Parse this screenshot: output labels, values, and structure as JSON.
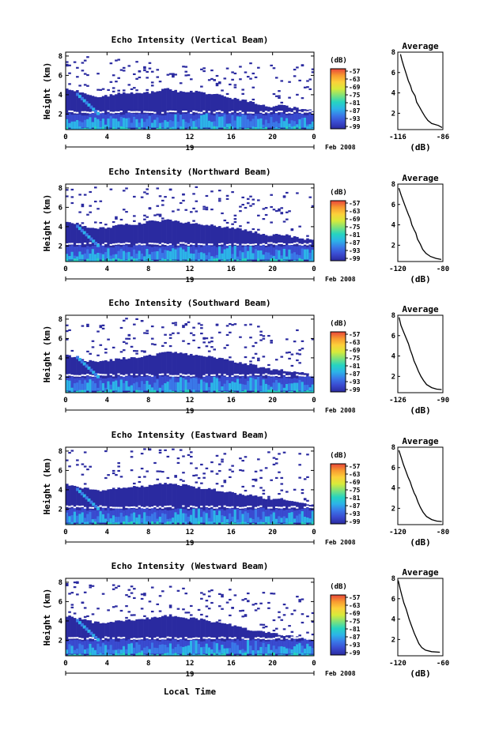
{
  "colors": {
    "colormap": [
      "#2a2aa0",
      "#3a4bd0",
      "#3a78e8",
      "#2cb4e8",
      "#26d4c0",
      "#7ee27a",
      "#d8ea3a",
      "#fcd03a",
      "#f89a30",
      "#e8453a"
    ]
  },
  "footer": {
    "xlabel": "Local Time"
  },
  "chart_data": [
    {
      "type": "heatmap",
      "title": "Echo Intensity (Vertical Beam)",
      "ylabel": "Height (km)",
      "x_ticks": [
        "0",
        "4",
        "8",
        "12",
        "16",
        "20",
        "0"
      ],
      "y_ticks": [
        "2",
        "4",
        "6",
        "8"
      ],
      "date_day": "19",
      "date_label": "Feb 2008",
      "colorbar": {
        "unit": "(dB)",
        "ticks": [
          "-57",
          "-63",
          "-69",
          "-75",
          "-81",
          "-87",
          "-93",
          "-99"
        ]
      },
      "top_clear_km": [
        6.9,
        6.7,
        6.9,
        6.8,
        7.0,
        6.7,
        6.5,
        6.4,
        6.3,
        6.5,
        6.6,
        6.8,
        6.6,
        6.2,
        6.0,
        5.8,
        6.0,
        6.3,
        6.5,
        6.4,
        6.2,
        6.0,
        5.9,
        6.2,
        6.0
      ],
      "layer_top_km": [
        4.6,
        4.4,
        4.0,
        3.8,
        3.9,
        4.1,
        4.2,
        4.1,
        4.2,
        4.5,
        4.6,
        4.3,
        4.4,
        4.3,
        4.1,
        3.9,
        3.6,
        3.5,
        3.3,
        3.0,
        2.8,
        2.9,
        2.7,
        2.5,
        2.4
      ],
      "average_profile": {
        "title": "Average",
        "xlabel": "(dB)",
        "x_ticks": [
          "-116",
          "-86"
        ],
        "xlim": [
          -116,
          -86
        ],
        "y_ticks": [
          "2",
          "4",
          "6",
          "8"
        ],
        "ylim": [
          0.4,
          8
        ],
        "points": [
          [
            -114.2,
            7.8
          ],
          [
            -113.2,
            7.2
          ],
          [
            -112.0,
            6.6
          ],
          [
            -110.5,
            5.9
          ],
          [
            -109.0,
            5.2
          ],
          [
            -107.5,
            4.7
          ],
          [
            -106.5,
            4.2
          ],
          [
            -104.5,
            3.7
          ],
          [
            -103.5,
            3.1
          ],
          [
            -101.5,
            2.6
          ],
          [
            -100.0,
            2.2
          ],
          [
            -98.0,
            1.7
          ],
          [
            -96.0,
            1.3
          ],
          [
            -93.5,
            1.0
          ],
          [
            -89.0,
            0.8
          ],
          [
            -86.5,
            0.6
          ]
        ]
      }
    },
    {
      "type": "heatmap",
      "title": "Echo Intensity (Northward Beam)",
      "ylabel": "Height (km)",
      "x_ticks": [
        "0",
        "4",
        "8",
        "12",
        "16",
        "20",
        "0"
      ],
      "y_ticks": [
        "2",
        "4",
        "6",
        "8"
      ],
      "date_day": "19",
      "date_label": "Feb 2008",
      "colorbar": {
        "unit": "(dB)",
        "ticks": [
          "-57",
          "-63",
          "-69",
          "-75",
          "-81",
          "-87",
          "-93",
          "-99"
        ]
      },
      "top_clear_km": [
        7.8,
        7.7,
        7.8,
        7.6,
        7.7,
        7.8,
        7.6,
        7.5,
        7.4,
        7.6,
        7.7,
        7.5,
        7.3,
        7.2,
        7.0,
        6.9,
        7.1,
        7.2,
        7.0,
        6.8,
        6.6,
        6.7,
        6.5,
        6.6,
        6.5
      ],
      "layer_top_km": [
        4.5,
        4.3,
        4.0,
        3.8,
        3.9,
        4.2,
        4.3,
        4.3,
        4.5,
        4.6,
        4.7,
        4.5,
        4.4,
        4.3,
        4.2,
        4.0,
        3.9,
        3.7,
        3.5,
        3.3,
        3.1,
        3.2,
        3.0,
        2.8,
        2.6
      ],
      "average_profile": {
        "title": "Average",
        "xlabel": "(dB)",
        "x_ticks": [
          "-120",
          "-80"
        ],
        "xlim": [
          -120,
          -80
        ],
        "y_ticks": [
          "2",
          "4",
          "6",
          "8"
        ],
        "ylim": [
          0.4,
          8
        ],
        "points": [
          [
            -119.0,
            7.6
          ],
          [
            -117.0,
            6.9
          ],
          [
            -115.0,
            6.3
          ],
          [
            -113.0,
            5.7
          ],
          [
            -110.5,
            5.0
          ],
          [
            -109.0,
            4.6
          ],
          [
            -107.5,
            4.0
          ],
          [
            -105.5,
            3.5
          ],
          [
            -104.0,
            3.2
          ],
          [
            -102.5,
            2.6
          ],
          [
            -100.0,
            2.1
          ],
          [
            -98.0,
            1.6
          ],
          [
            -95.0,
            1.2
          ],
          [
            -91.0,
            0.9
          ],
          [
            -86.0,
            0.7
          ],
          [
            -81.5,
            0.6
          ]
        ]
      }
    },
    {
      "type": "heatmap",
      "title": "Echo Intensity (Southward Beam)",
      "ylabel": "Height (km)",
      "x_ticks": [
        "0",
        "4",
        "8",
        "12",
        "16",
        "20",
        "0"
      ],
      "y_ticks": [
        "2",
        "4",
        "6",
        "8"
      ],
      "date_day": "19",
      "date_label": "Feb 2008",
      "colorbar": {
        "unit": "(dB)",
        "ticks": [
          "-57",
          "-63",
          "-69",
          "-75",
          "-81",
          "-87",
          "-93",
          "-99"
        ]
      },
      "top_clear_km": [
        7.4,
        7.3,
        7.6,
        7.5,
        7.3,
        7.4,
        7.2,
        7.0,
        6.9,
        7.1,
        7.0,
        6.8,
        6.9,
        6.7,
        6.6,
        6.5,
        6.7,
        6.8,
        6.6,
        6.3,
        6.1,
        6.3,
        6.0,
        6.2,
        6.0
      ],
      "layer_top_km": [
        4.3,
        4.0,
        3.7,
        3.6,
        3.7,
        3.9,
        4.0,
        4.1,
        4.2,
        4.4,
        4.6,
        4.5,
        4.3,
        4.2,
        4.1,
        3.9,
        3.7,
        3.5,
        3.3,
        3.0,
        2.8,
        2.7,
        2.5,
        2.4,
        2.2
      ],
      "average_profile": {
        "title": "Average",
        "xlabel": "(dB)",
        "x_ticks": [
          "-126",
          "-90"
        ],
        "xlim": [
          -126,
          -90
        ],
        "y_ticks": [
          "2",
          "4",
          "6",
          "8"
        ],
        "ylim": [
          0.4,
          8
        ],
        "points": [
          [
            -125.0,
            7.8
          ],
          [
            -123.5,
            7.0
          ],
          [
            -121.5,
            6.4
          ],
          [
            -119.5,
            5.8
          ],
          [
            -117.5,
            5.2
          ],
          [
            -116.0,
            4.6
          ],
          [
            -114.5,
            4.1
          ],
          [
            -113.0,
            3.5
          ],
          [
            -111.5,
            3.1
          ],
          [
            -109.5,
            2.5
          ],
          [
            -107.5,
            2.0
          ],
          [
            -105.5,
            1.6
          ],
          [
            -103.0,
            1.2
          ],
          [
            -99.0,
            0.9
          ],
          [
            -95.0,
            0.75
          ],
          [
            -91.0,
            0.7
          ]
        ]
      }
    },
    {
      "type": "heatmap",
      "title": "Echo Intensity (Eastward Beam)",
      "ylabel": "Height (km)",
      "x_ticks": [
        "0",
        "4",
        "8",
        "12",
        "16",
        "20",
        "0"
      ],
      "y_ticks": [
        "2",
        "4",
        "6",
        "8"
      ],
      "date_day": "19",
      "date_label": "Feb 2008",
      "colorbar": {
        "unit": "(dB)",
        "ticks": [
          "-57",
          "-63",
          "-69",
          "-75",
          "-81",
          "-87",
          "-93",
          "-99"
        ]
      },
      "top_clear_km": [
        7.9,
        7.8,
        7.9,
        7.7,
        7.8,
        7.6,
        7.5,
        7.4,
        7.5,
        7.3,
        7.4,
        7.2,
        7.0,
        6.9,
        7.0,
        6.8,
        6.6,
        6.5,
        6.7,
        6.9,
        7.2,
        7.4,
        7.3,
        7.1,
        7.0
      ],
      "layer_top_km": [
        4.6,
        4.4,
        4.1,
        3.9,
        4.0,
        4.2,
        4.3,
        4.3,
        4.4,
        4.6,
        4.7,
        4.5,
        4.4,
        4.2,
        4.1,
        3.9,
        3.7,
        3.5,
        3.4,
        3.2,
        3.0,
        3.1,
        2.9,
        2.7,
        2.5
      ],
      "average_profile": {
        "title": "Average",
        "xlabel": "(dB)",
        "x_ticks": [
          "-120",
          "-80"
        ],
        "xlim": [
          -120,
          -80
        ],
        "y_ticks": [
          "2",
          "4",
          "6",
          "8"
        ],
        "ylim": [
          0.4,
          8
        ],
        "points": [
          [
            -119.0,
            7.7
          ],
          [
            -117.0,
            7.0
          ],
          [
            -115.0,
            6.3
          ],
          [
            -113.0,
            5.7
          ],
          [
            -111.0,
            5.1
          ],
          [
            -109.0,
            4.6
          ],
          [
            -107.5,
            4.1
          ],
          [
            -105.5,
            3.5
          ],
          [
            -104.0,
            3.2
          ],
          [
            -102.0,
            2.6
          ],
          [
            -100.0,
            2.1
          ],
          [
            -97.5,
            1.6
          ],
          [
            -94.5,
            1.2
          ],
          [
            -90.0,
            0.9
          ],
          [
            -85.5,
            0.75
          ],
          [
            -81.0,
            0.7
          ]
        ]
      }
    },
    {
      "type": "heatmap",
      "title": "Echo Intensity (Westward Beam)",
      "ylabel": "Height (km)",
      "x_ticks": [
        "0",
        "4",
        "8",
        "12",
        "16",
        "20",
        "0"
      ],
      "y_ticks": [
        "2",
        "4",
        "6",
        "8"
      ],
      "date_day": "19",
      "date_label": "Feb 2008",
      "colorbar": {
        "unit": "(dB)",
        "ticks": [
          "-57",
          "-63",
          "-69",
          "-75",
          "-81",
          "-87",
          "-93",
          "-99"
        ]
      },
      "top_clear_km": [
        7.3,
        7.2,
        7.0,
        7.1,
        6.9,
        6.8,
        6.9,
        6.7,
        6.8,
        7.0,
        6.9,
        6.6,
        6.5,
        6.6,
        6.4,
        6.3,
        6.5,
        6.2,
        6.0,
        5.9,
        6.0,
        5.8,
        5.6,
        5.7,
        5.5
      ],
      "layer_top_km": [
        4.5,
        4.3,
        4.0,
        3.8,
        3.9,
        4.0,
        4.1,
        4.2,
        4.3,
        4.5,
        4.6,
        4.4,
        4.3,
        4.2,
        4.0,
        3.8,
        3.6,
        3.3,
        3.1,
        2.9,
        2.7,
        2.6,
        2.4,
        2.2,
        2.0
      ],
      "average_profile": {
        "title": "Average",
        "xlabel": "(dB)",
        "x_ticks": [
          "-120",
          "-60"
        ],
        "xlim": [
          -120,
          -60
        ],
        "y_ticks": [
          "2",
          "4",
          "6",
          "8"
        ],
        "ylim": [
          0.4,
          8
        ],
        "points": [
          [
            -119.5,
            7.8
          ],
          [
            -117.0,
            7.0
          ],
          [
            -114.5,
            6.3
          ],
          [
            -112.0,
            5.6
          ],
          [
            -109.0,
            5.0
          ],
          [
            -107.0,
            4.5
          ],
          [
            -105.0,
            4.0
          ],
          [
            -102.5,
            3.5
          ],
          [
            -100.5,
            3.1
          ],
          [
            -98.0,
            2.6
          ],
          [
            -95.0,
            2.1
          ],
          [
            -92.0,
            1.6
          ],
          [
            -88.0,
            1.2
          ],
          [
            -83.0,
            0.95
          ],
          [
            -75.0,
            0.8
          ],
          [
            -64.0,
            0.75
          ]
        ]
      }
    }
  ]
}
